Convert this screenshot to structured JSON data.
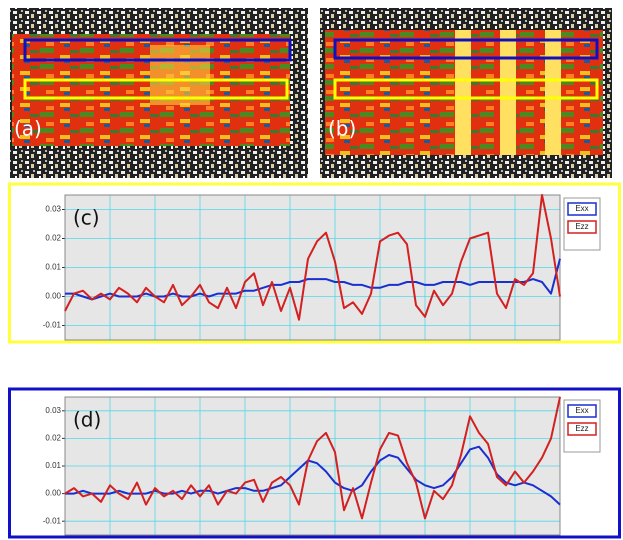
{
  "panels": {
    "a": {
      "label": "(a)"
    },
    "b": {
      "label": "(b)"
    }
  },
  "chart_data": [
    {
      "type": "line",
      "annotation": "(c)",
      "border_color": "#ffff3c",
      "grid": true,
      "legend": "right",
      "x": [
        0,
        1,
        2,
        3,
        4,
        5,
        6,
        7,
        8,
        9,
        10,
        11,
        12,
        13,
        14,
        15,
        16,
        17,
        18,
        19,
        20,
        21,
        22,
        23,
        24,
        25,
        26,
        27,
        28,
        29,
        30,
        31,
        32,
        33,
        34,
        35,
        36,
        37,
        38,
        39,
        40,
        41,
        42,
        43,
        44,
        45,
        46,
        47,
        48,
        49,
        50,
        51,
        52,
        53,
        54,
        55
      ],
      "xlim": [
        0,
        55
      ],
      "ylim": [
        -0.015,
        0.035
      ],
      "yticks": [
        {
          "value": -0.01,
          "label": "-0.01"
        },
        {
          "value": 0,
          "label": "0.00"
        },
        0.01,
        0.02,
        0.03
      ],
      "series": [
        {
          "name": "Exx",
          "color": "#1a2fd0",
          "values": [
            0.001,
            0.001,
            0.0,
            -0.001,
            0.0,
            0.001,
            0.0,
            0.0,
            0.0,
            0.001,
            0.0,
            0.0,
            0.001,
            0.0,
            0.0,
            0.001,
            0.0,
            0.001,
            0.001,
            0.001,
            0.002,
            0.002,
            0.003,
            0.004,
            0.004,
            0.005,
            0.005,
            0.006,
            0.006,
            0.006,
            0.005,
            0.005,
            0.004,
            0.004,
            0.003,
            0.003,
            0.004,
            0.004,
            0.005,
            0.005,
            0.004,
            0.004,
            0.005,
            0.005,
            0.005,
            0.004,
            0.005,
            0.005,
            0.005,
            0.005,
            0.005,
            0.005,
            0.006,
            0.005,
            0.001,
            0.013
          ]
        },
        {
          "name": "Ezz",
          "color": "#d42020",
          "values": [
            -0.005,
            0.001,
            0.002,
            -0.001,
            0.001,
            -0.001,
            0.003,
            0.001,
            -0.002,
            0.003,
            0.0,
            -0.002,
            0.004,
            -0.003,
            0.0,
            0.004,
            -0.002,
            -0.004,
            0.003,
            -0.004,
            0.005,
            0.008,
            -0.003,
            0.005,
            -0.005,
            0.003,
            -0.008,
            0.013,
            0.019,
            0.022,
            0.012,
            -0.004,
            -0.002,
            -0.006,
            0.001,
            0.019,
            0.021,
            0.022,
            0.018,
            -0.003,
            -0.007,
            0.002,
            -0.003,
            0.001,
            0.012,
            0.02,
            0.021,
            0.022,
            0.001,
            -0.004,
            0.006,
            0.004,
            0.008,
            0.035,
            0.02,
            0.0
          ]
        }
      ]
    },
    {
      "type": "line",
      "annotation": "(d)",
      "border_color": "#1010c8",
      "grid": true,
      "legend": "right",
      "x": [
        0,
        1,
        2,
        3,
        4,
        5,
        6,
        7,
        8,
        9,
        10,
        11,
        12,
        13,
        14,
        15,
        16,
        17,
        18,
        19,
        20,
        21,
        22,
        23,
        24,
        25,
        26,
        27,
        28,
        29,
        30,
        31,
        32,
        33,
        34,
        35,
        36,
        37,
        38,
        39,
        40,
        41,
        42,
        43,
        44,
        45,
        46,
        47,
        48,
        49,
        50,
        51,
        52,
        53,
        54,
        55
      ],
      "xlim": [
        0,
        55
      ],
      "ylim": [
        -0.015,
        0.035
      ],
      "yticks": [
        {
          "value": -0.01,
          "label": "-0.01"
        },
        {
          "value": 0,
          "label": "0.00"
        },
        0.01,
        0.02,
        0.03
      ],
      "series": [
        {
          "name": "Exx",
          "color": "#1a2fd0",
          "values": [
            0.0,
            0.0,
            0.001,
            0.0,
            0.0,
            0.0,
            0.001,
            0.0,
            0.0,
            0.0,
            0.001,
            0.0,
            0.0,
            0.001,
            0.0,
            0.001,
            0.001,
            0.0,
            0.001,
            0.002,
            0.002,
            0.001,
            0.001,
            0.002,
            0.003,
            0.006,
            0.009,
            0.012,
            0.011,
            0.008,
            0.004,
            0.002,
            0.001,
            0.003,
            0.008,
            0.012,
            0.014,
            0.013,
            0.009,
            0.005,
            0.003,
            0.002,
            0.003,
            0.006,
            0.011,
            0.016,
            0.017,
            0.013,
            0.007,
            0.004,
            0.003,
            0.004,
            0.003,
            0.001,
            -0.001,
            -0.004
          ]
        },
        {
          "name": "Ezz",
          "color": "#d42020",
          "values": [
            0.0,
            0.002,
            -0.001,
            0.0,
            -0.003,
            0.003,
            0.0,
            -0.002,
            0.004,
            -0.004,
            0.002,
            -0.001,
            0.001,
            -0.002,
            0.003,
            -0.001,
            0.003,
            -0.004,
            0.001,
            0.0,
            0.004,
            0.005,
            -0.003,
            0.004,
            0.006,
            0.003,
            -0.004,
            0.012,
            0.019,
            0.022,
            0.015,
            -0.006,
            0.002,
            -0.009,
            0.004,
            0.016,
            0.022,
            0.021,
            0.011,
            0.004,
            -0.009,
            0.001,
            -0.002,
            0.003,
            0.014,
            0.028,
            0.022,
            0.018,
            0.006,
            0.003,
            0.008,
            0.004,
            0.008,
            0.013,
            0.02,
            0.035
          ]
        }
      ]
    }
  ]
}
